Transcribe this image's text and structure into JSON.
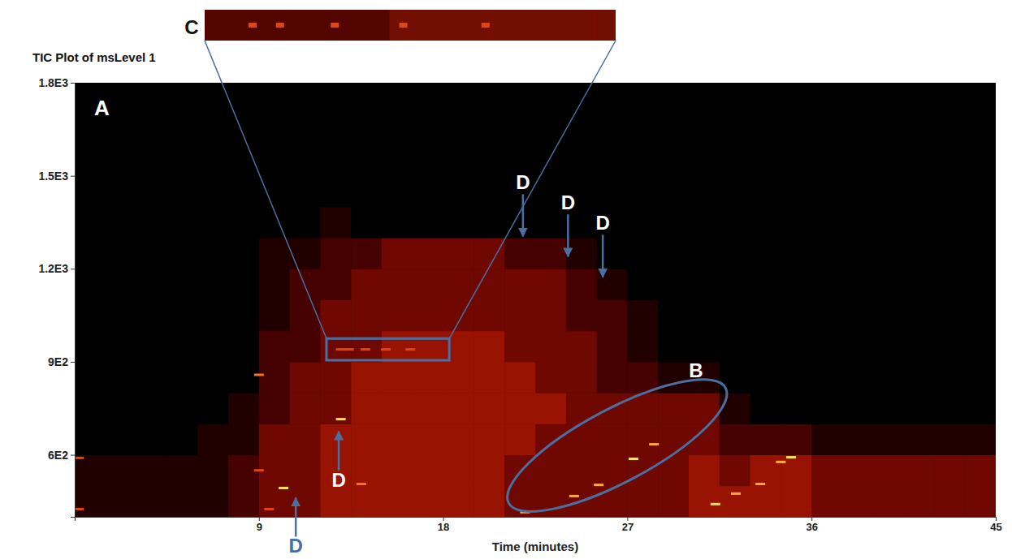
{
  "chart_data": {
    "type": "heatmap",
    "title": "TIC Plot of msLevel 1",
    "x_label": "Time (minutes)",
    "xlim": [
      0,
      45
    ],
    "xticks": [
      9,
      18,
      27,
      36,
      45
    ],
    "ylim": [
      400,
      1800
    ],
    "yticks": [
      {
        "value": 600,
        "label": "6E2"
      },
      {
        "value": 900,
        "label": "9E2"
      },
      {
        "value": 1200,
        "label": "1.2E3"
      },
      {
        "value": 1500,
        "label": "1.5E3"
      },
      {
        "value": 1800,
        "label": "1.8E3"
      }
    ],
    "x_bins": [
      0,
      1.5,
      3,
      4.5,
      6,
      7.5,
      9,
      10.5,
      12,
      13.5,
      15,
      16.5,
      18,
      19.5,
      21,
      22.5,
      24,
      25.5,
      27,
      28.5,
      30,
      31.5,
      33,
      34.5,
      36,
      37.5,
      39,
      40.5,
      42,
      43.5,
      45
    ],
    "y_bins": [
      400,
      500,
      600,
      700,
      800,
      900,
      1000,
      1100,
      1200,
      1300,
      1400,
      1500,
      1600,
      1700,
      1800
    ],
    "cells": [
      [
        1,
        1,
        0,
        0,
        0,
        0,
        0,
        0,
        0,
        0,
        0,
        0,
        0,
        0
      ],
      [
        1,
        1,
        0,
        0,
        0,
        0,
        0,
        0,
        0,
        0,
        0,
        0,
        0,
        0
      ],
      [
        1,
        1,
        0,
        0,
        0,
        0,
        0,
        0,
        0,
        0,
        0,
        0,
        0,
        0
      ],
      [
        1,
        1,
        0,
        0,
        0,
        0,
        0,
        0,
        0,
        0,
        0,
        0,
        0,
        0
      ],
      [
        1,
        1,
        1,
        0,
        0,
        0,
        0,
        0,
        0,
        0,
        0,
        0,
        0,
        0
      ],
      [
        2,
        2,
        1,
        1,
        0,
        0,
        0,
        0,
        0,
        0,
        0,
        0,
        0,
        0
      ],
      [
        3,
        3,
        3,
        2,
        2,
        2,
        1,
        1,
        1,
        0,
        0,
        0,
        0,
        0
      ],
      [
        3,
        3,
        3,
        3,
        3,
        2,
        2,
        2,
        1,
        0,
        0,
        0,
        0,
        0
      ],
      [
        4,
        4,
        4,
        3,
        3,
        3,
        3,
        2,
        2,
        1,
        0,
        0,
        0,
        0
      ],
      [
        4,
        4,
        4,
        4,
        4,
        3,
        3,
        3,
        2,
        0,
        0,
        0,
        0,
        0
      ],
      [
        4,
        4,
        4,
        4,
        4,
        4,
        3,
        3,
        3,
        0,
        0,
        0,
        0,
        0
      ],
      [
        4,
        4,
        4,
        4,
        4,
        4,
        3,
        3,
        3,
        0,
        0,
        0,
        0,
        0
      ],
      [
        4,
        4,
        4,
        4,
        4,
        4,
        3,
        3,
        3,
        0,
        0,
        0,
        0,
        0
      ],
      [
        4,
        4,
        4,
        4,
        4,
        4,
        3,
        3,
        3,
        0,
        0,
        0,
        0,
        0
      ],
      [
        3,
        3,
        4,
        4,
        4,
        3,
        3,
        3,
        2,
        0,
        0,
        0,
        0,
        0
      ],
      [
        3,
        3,
        3,
        4,
        3,
        3,
        3,
        3,
        2,
        0,
        0,
        0,
        0,
        0
      ],
      [
        3,
        3,
        3,
        3,
        3,
        3,
        2,
        2,
        1,
        0,
        0,
        0,
        0,
        0
      ],
      [
        3,
        3,
        3,
        3,
        2,
        2,
        2,
        1,
        0,
        0,
        0,
        0,
        0,
        0
      ],
      [
        3,
        3,
        3,
        3,
        2,
        1,
        1,
        0,
        0,
        0,
        0,
        0,
        0,
        0
      ],
      [
        3,
        3,
        3,
        3,
        1,
        0,
        0,
        0,
        0,
        0,
        0,
        0,
        0,
        0
      ],
      [
        4,
        4,
        3,
        3,
        1,
        0,
        0,
        0,
        0,
        0,
        0,
        0,
        0,
        0
      ],
      [
        4,
        3,
        2,
        1,
        0,
        0,
        0,
        0,
        0,
        0,
        0,
        0,
        0,
        0
      ],
      [
        4,
        4,
        2,
        0,
        0,
        0,
        0,
        0,
        0,
        0,
        0,
        0,
        0,
        0
      ],
      [
        4,
        4,
        2,
        0,
        0,
        0,
        0,
        0,
        0,
        0,
        0,
        0,
        0,
        0
      ],
      [
        3,
        3,
        1,
        0,
        0,
        0,
        0,
        0,
        0,
        0,
        0,
        0,
        0,
        0
      ],
      [
        3,
        3,
        1,
        0,
        0,
        0,
        0,
        0,
        0,
        0,
        0,
        0,
        0,
        0
      ],
      [
        3,
        3,
        1,
        0,
        0,
        0,
        0,
        0,
        0,
        0,
        0,
        0,
        0,
        0
      ],
      [
        3,
        3,
        1,
        0,
        0,
        0,
        0,
        0,
        0,
        0,
        0,
        0,
        0,
        0
      ],
      [
        3,
        3,
        1,
        0,
        0,
        0,
        0,
        0,
        0,
        0,
        0,
        0,
        0,
        0
      ],
      [
        3,
        3,
        1,
        0,
        0,
        0,
        0,
        0,
        0,
        0,
        0,
        0,
        0,
        0
      ]
    ],
    "peaks": {
      "x": [
        0.2,
        0.2,
        9.0,
        9.5,
        9.0,
        10.2,
        13.0,
        14.0,
        22.0,
        24.4,
        25.6,
        27.3,
        28.3,
        31.3,
        32.3,
        33.5,
        34.5,
        35.0,
        13.0,
        13.4,
        14.2,
        15.2,
        16.4
      ],
      "y": [
        590,
        425,
        550,
        425,
        858,
        493,
        715,
        506,
        415,
        467,
        503,
        587,
        634,
        441,
        475,
        506,
        577,
        592,
        940,
        940,
        940,
        940,
        940
      ],
      "intensity": [
        6,
        6,
        6,
        6,
        7,
        9,
        9,
        7,
        8,
        8,
        8,
        9,
        8,
        9,
        8,
        8,
        8,
        9,
        6,
        6,
        6,
        6,
        6
      ]
    },
    "annotations": [
      {
        "text": "A"
      },
      {
        "text": "B",
        "x": [
          20.5,
          32.5
        ],
        "y": [
          400,
          860
        ]
      },
      {
        "text": "C",
        "x": [
          12.3,
          18.3
        ],
        "y": [
          905,
          975
        ]
      },
      {
        "text": "D",
        "x": 21.9,
        "y": 1294
      },
      {
        "text": "D",
        "x": 24.1,
        "y": 1229
      },
      {
        "text": "D",
        "x": 25.8,
        "y": 1163
      },
      {
        "text": "D",
        "x": 10.8,
        "y": 472
      },
      {
        "text": "D",
        "x": 12.9,
        "y": 686
      }
    ]
  }
}
